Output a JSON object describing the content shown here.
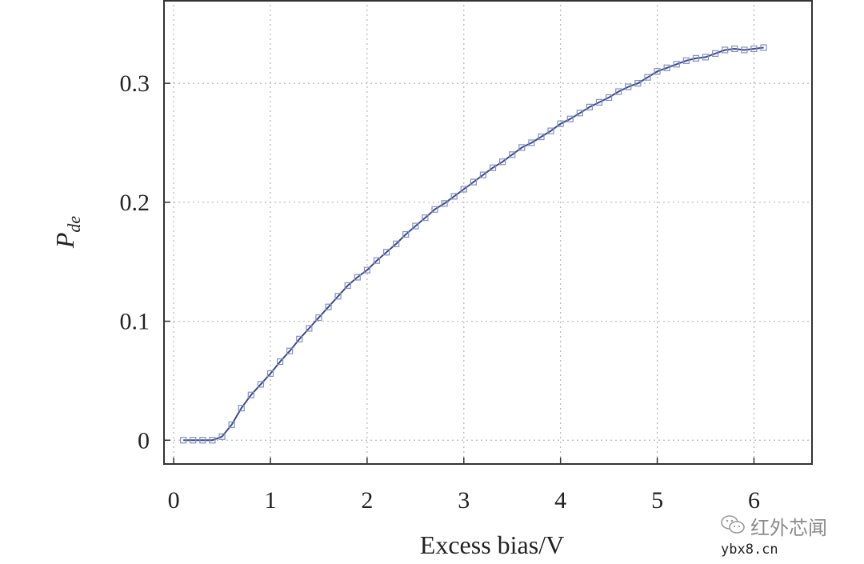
{
  "chart_data": {
    "type": "line",
    "title": "",
    "xlabel": "Excess bias/V",
    "ylabel": {
      "main": "P",
      "sub": "de"
    },
    "xlim": [
      -0.1,
      6.6
    ],
    "ylim": [
      -0.02,
      0.37
    ],
    "xticks": [
      0,
      1,
      2,
      3,
      4,
      5,
      6
    ],
    "xtick_labels": [
      "0",
      "1",
      "2",
      "3",
      "4",
      "5",
      "6"
    ],
    "yticks": [
      0,
      0.1,
      0.2,
      0.3
    ],
    "ytick_labels": [
      "0",
      "0.1",
      "0.2",
      "0.3"
    ],
    "grid": true,
    "legend": "none",
    "colors": {
      "line": "#3b4a8a",
      "marker": "#8090c8",
      "grid": "#b5b5b5",
      "axis": "#333333"
    },
    "series": [
      {
        "marker": "square",
        "x": [
          0.1,
          0.2,
          0.3,
          0.4,
          0.5,
          0.6,
          0.7,
          0.8,
          0.9,
          1.0,
          1.1,
          1.2,
          1.3,
          1.4,
          1.5,
          1.6,
          1.7,
          1.8,
          1.9,
          2.0,
          2.1,
          2.2,
          2.3,
          2.4,
          2.5,
          2.6,
          2.7,
          2.8,
          2.9,
          3.0,
          3.1,
          3.2,
          3.3,
          3.4,
          3.5,
          3.6,
          3.7,
          3.8,
          3.9,
          4.0,
          4.1,
          4.2,
          4.3,
          4.4,
          4.5,
          4.6,
          4.7,
          4.8,
          4.9,
          5.0,
          5.1,
          5.2,
          5.3,
          5.4,
          5.5,
          5.6,
          5.7,
          5.8,
          5.9,
          6.0,
          6.1
        ],
        "y": [
          0.0,
          0.0,
          0.0,
          0.0,
          0.003,
          0.013,
          0.027,
          0.038,
          0.047,
          0.056,
          0.066,
          0.075,
          0.085,
          0.094,
          0.103,
          0.112,
          0.121,
          0.13,
          0.137,
          0.143,
          0.151,
          0.158,
          0.165,
          0.173,
          0.18,
          0.187,
          0.194,
          0.199,
          0.205,
          0.211,
          0.217,
          0.223,
          0.229,
          0.234,
          0.24,
          0.246,
          0.25,
          0.255,
          0.26,
          0.266,
          0.27,
          0.275,
          0.28,
          0.284,
          0.288,
          0.293,
          0.297,
          0.3,
          0.305,
          0.31,
          0.313,
          0.316,
          0.319,
          0.321,
          0.322,
          0.325,
          0.328,
          0.329,
          0.328,
          0.329,
          0.33
        ]
      }
    ]
  },
  "watermark": {
    "name": "红外芯闻",
    "site": "ybx8.cn",
    "icon": "wechat-icon"
  }
}
